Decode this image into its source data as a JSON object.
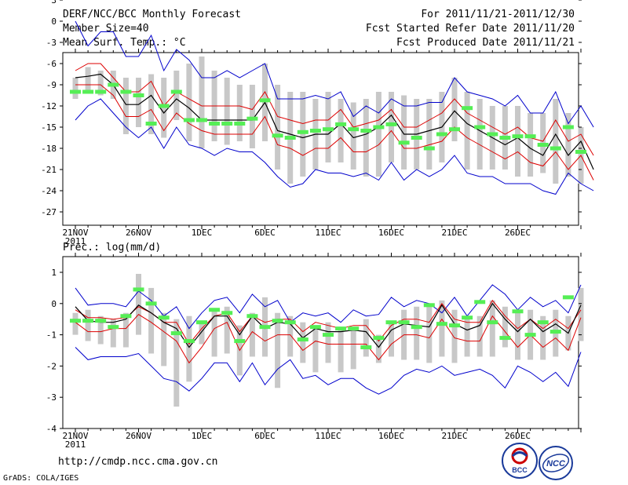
{
  "header": {
    "title": "DERF/NCC/BCC Monthly Forecast",
    "member_size": "Member Size=40",
    "variable": "Mean Surf. Temp.: °C",
    "period": "For 2011/11/21-2011/12/30",
    "started": "Fcst Started Refer Date 2011/11/20",
    "produced": "Fcst Produced Date 2011/11/21"
  },
  "footer": {
    "url": "http://cmdp.ncc.cma.gov.cn",
    "grads": "GrADS: COLA/IGES",
    "logo1": "BCC",
    "logo2": "NCC"
  },
  "colors": {
    "max_min": "#0000cc",
    "spread": "#dd0000",
    "mean": "#000000",
    "obs": "#55ee55",
    "box": "#c8c8c8"
  },
  "chart_data": [
    {
      "type": "line",
      "title": "Mean Surf. Temp.: °C",
      "ylabel": "°C",
      "ylim": [
        -28,
        4
      ],
      "yticks": [
        3,
        0,
        -3,
        -6,
        -9,
        -12,
        -15,
        -18,
        -21,
        -24,
        -27
      ],
      "xlabels": [
        {
          "day": 0,
          "label": "21NOV"
        },
        {
          "day": 5,
          "label": "26NOV"
        },
        {
          "day": 10,
          "label": "1DEC"
        },
        {
          "day": 15,
          "label": "6DEC"
        },
        {
          "day": 20,
          "label": "11DEC"
        },
        {
          "day": 25,
          "label": "16DEC"
        },
        {
          "day": 30,
          "label": "21DEC"
        },
        {
          "day": 35,
          "label": "26DEC"
        }
      ],
      "year_label": "2011",
      "series": [
        {
          "name": "max",
          "values": [
            0,
            -3.5,
            -1.5,
            -1.5,
            -5,
            -5,
            -2,
            -7,
            -4,
            -5.5,
            -8,
            -8,
            -7,
            -8,
            -7,
            -6,
            -11,
            -11,
            -11,
            -10.5,
            -11,
            -10,
            -13.5,
            -12,
            -13,
            -11,
            -12,
            -12,
            -11.5,
            -11.5,
            -8,
            -10,
            -10.5,
            -11,
            -12,
            -10.5,
            -13,
            -13,
            -10,
            -14.5,
            -12,
            -15
          ]
        },
        {
          "name": "upper",
          "values": [
            -7,
            -6,
            -6,
            -8,
            -10,
            -10,
            -8.5,
            -12,
            -10,
            -11,
            -12,
            -12,
            -12,
            -12,
            -12.5,
            -10,
            -13.5,
            -14,
            -14.5,
            -14,
            -14,
            -12.5,
            -15,
            -14.5,
            -14,
            -12.5,
            -15,
            -15,
            -14,
            -13,
            -11,
            -13,
            -14,
            -15,
            -16,
            -15,
            -16.5,
            -17,
            -14,
            -17,
            -16,
            -19
          ]
        },
        {
          "name": "mean",
          "values": [
            -8,
            -7.8,
            -7.5,
            -9,
            -11.8,
            -11.8,
            -10.5,
            -13,
            -11,
            -12.3,
            -14,
            -14,
            -14,
            -14,
            -14,
            -11.5,
            -15.5,
            -16,
            -16.5,
            -16,
            -16,
            -14.5,
            -16.5,
            -16,
            -15,
            -13.3,
            -16,
            -16,
            -15.5,
            -15,
            -12.7,
            -14.5,
            -15.5,
            -16.5,
            -17.5,
            -16.5,
            -18,
            -19,
            -16,
            -19,
            -17,
            -21
          ]
        },
        {
          "name": "lower",
          "values": [
            -9,
            -9,
            -9,
            -10.5,
            -13.5,
            -13.5,
            -12.5,
            -15.5,
            -13,
            -14.5,
            -15.5,
            -16,
            -16,
            -16,
            -16,
            -13.5,
            -17.5,
            -18,
            -19,
            -18,
            -18,
            -16.5,
            -18.5,
            -18.5,
            -17.5,
            -15.5,
            -18,
            -18,
            -17.5,
            -17,
            -15,
            -16.5,
            -17.5,
            -18.5,
            -19.5,
            -18.5,
            -20,
            -20.5,
            -18.5,
            -21,
            -19,
            -22.5
          ]
        },
        {
          "name": "min",
          "values": [
            -14,
            -12,
            -11,
            -13,
            -15,
            -16.5,
            -15,
            -18,
            -15,
            -17.5,
            -18,
            -19,
            -18,
            -18.5,
            -18.5,
            -20,
            -22,
            -23.5,
            -23,
            -21,
            -21.5,
            -21.5,
            -22,
            -21.5,
            -22.5,
            -20,
            -22.5,
            -21,
            -22,
            -21,
            -19,
            -21.5,
            -22,
            -22,
            -23,
            -23,
            -23,
            -24,
            -24.5,
            -21.5,
            -23,
            -24
          ]
        },
        {
          "name": "obs",
          "values": [
            -10,
            -10,
            -10,
            -9,
            -10,
            -10.5,
            -14.5,
            -12,
            -10,
            -14,
            -14,
            -14.5,
            -14.5,
            -14.5,
            -13.8,
            -11.2,
            -16.2,
            -16.5,
            -15.7,
            -15.5,
            -15.3,
            -14.6,
            -15.3,
            -15.5,
            -15,
            -14.6,
            -17.2,
            -16.5,
            -18,
            -16,
            -15.3,
            -12.3,
            -15,
            -16,
            -16.5,
            -16.3,
            -16.3,
            -17.5,
            -18,
            -15,
            -18.5
          ]
        }
      ],
      "box_ranges": [
        [
          -8,
          -11
        ],
        [
          -6.5,
          -10
        ],
        [
          -7,
          -10.5
        ],
        [
          -7,
          -11
        ],
        [
          -8,
          -16
        ],
        [
          -8,
          -15
        ],
        [
          -7.5,
          -16
        ],
        [
          -8,
          -16.5
        ],
        [
          -7,
          -14
        ],
        [
          -6,
          -17
        ],
        [
          -5,
          -18
        ],
        [
          -7,
          -17
        ],
        [
          -8,
          -17.5
        ],
        [
          -9,
          -17
        ],
        [
          -9,
          -18
        ],
        [
          -6,
          -17
        ],
        [
          -9,
          -21
        ],
        [
          -10,
          -23
        ],
        [
          -10,
          -22
        ],
        [
          -11,
          -21
        ],
        [
          -10,
          -20
        ],
        [
          -11,
          -20
        ],
        [
          -11.5,
          -21
        ],
        [
          -11,
          -22
        ],
        [
          -10,
          -22
        ],
        [
          -10,
          -20
        ],
        [
          -10.5,
          -21
        ],
        [
          -11,
          -21
        ],
        [
          -11,
          -21
        ],
        [
          -10,
          -20
        ],
        [
          -8,
          -17
        ],
        [
          -10,
          -21
        ],
        [
          -11,
          -21
        ],
        [
          -12,
          -21
        ],
        [
          -12,
          -21
        ],
        [
          -12,
          -22
        ],
        [
          -13,
          -22
        ],
        [
          -13,
          -21.5
        ],
        [
          -11,
          -23
        ],
        [
          -13,
          -22
        ],
        [
          -15,
          -23
        ]
      ]
    },
    {
      "type": "line",
      "title": "Prec.: log(mm/d)",
      "ylabel": "log(mm/d)",
      "ylim": [
        -4,
        1.5
      ],
      "yticks": [
        1,
        0,
        -1,
        -2,
        -3,
        -4
      ],
      "xlabels": [
        {
          "day": 0,
          "label": "21NOV"
        },
        {
          "day": 5,
          "label": "26NOV"
        },
        {
          "day": 10,
          "label": "1DEC"
        },
        {
          "day": 15,
          "label": "6DEC"
        },
        {
          "day": 20,
          "label": "11DEC"
        },
        {
          "day": 25,
          "label": "16DEC"
        },
        {
          "day": 30,
          "label": "21DEC"
        },
        {
          "day": 35,
          "label": "26DEC"
        }
      ],
      "year_label": "2011",
      "series": [
        {
          "name": "max",
          "values": [
            0.5,
            -0.05,
            0,
            0,
            -0.1,
            0.4,
            0.1,
            -0.4,
            -0.1,
            -0.8,
            -0.3,
            0.1,
            0.2,
            -0.3,
            0.3,
            -0.1,
            0.1,
            -0.6,
            -0.3,
            -0.4,
            -0.3,
            -0.6,
            -0.2,
            -0.4,
            -0.35,
            0.2,
            -0.1,
            0.1,
            0,
            -0.3,
            0.2,
            -0.4,
            0.1,
            0.6,
            0.3,
            -0.2,
            0.2,
            -0.1,
            0.1,
            -0.3,
            0.6
          ]
        },
        {
          "name": "upper",
          "values": [
            -0.2,
            -0.45,
            -0.45,
            -0.5,
            -0.45,
            -0.1,
            -0.3,
            -0.6,
            -0.6,
            -1.3,
            -0.8,
            -0.4,
            -0.3,
            -0.9,
            -0.4,
            -0.6,
            -0.5,
            -0.5,
            -0.9,
            -0.6,
            -0.7,
            -0.8,
            -0.7,
            -0.7,
            -1.2,
            -0.7,
            -0.5,
            -0.5,
            -0.6,
            0,
            -0.5,
            -0.6,
            -0.6,
            0.1,
            -0.4,
            -0.8,
            -0.5,
            -0.8,
            -0.5,
            -0.8,
            -0.2
          ]
        },
        {
          "name": "mean",
          "values": [
            -0.1,
            -0.55,
            -0.6,
            -0.6,
            -0.5,
            -0.05,
            -0.3,
            -0.6,
            -0.8,
            -1.4,
            -0.9,
            -0.4,
            -0.4,
            -1,
            -0.4,
            -0.8,
            -0.6,
            -0.65,
            -1.1,
            -0.8,
            -0.9,
            -0.9,
            -0.85,
            -0.9,
            -1.4,
            -0.85,
            -0.65,
            -0.7,
            -0.75,
            -0.05,
            -0.65,
            -0.85,
            -0.7,
            0,
            -0.5,
            -0.9,
            -0.5,
            -0.9,
            -0.65,
            -0.95,
            -0.05
          ]
        },
        {
          "name": "lower",
          "values": [
            -0.6,
            -0.9,
            -0.9,
            -0.8,
            -0.8,
            -0.35,
            -0.6,
            -0.9,
            -1.2,
            -1.9,
            -1.4,
            -0.8,
            -0.6,
            -1.5,
            -0.9,
            -1.2,
            -1,
            -1,
            -1.5,
            -1.2,
            -1.3,
            -1.3,
            -1.3,
            -1.3,
            -1.8,
            -1.3,
            -1,
            -1,
            -1.1,
            -0.5,
            -1.1,
            -1.2,
            -1.2,
            -0.4,
            -0.9,
            -1.4,
            -1,
            -1.4,
            -1.1,
            -1.5,
            -0.45
          ]
        },
        {
          "name": "min",
          "values": [
            -1.4,
            -1.8,
            -1.7,
            -1.7,
            -1.7,
            -1.6,
            -2,
            -2.4,
            -2.5,
            -2.8,
            -2.4,
            -1.9,
            -1.9,
            -2.5,
            -1.9,
            -2.6,
            -2.1,
            -1.8,
            -2.4,
            -2.3,
            -2.6,
            -2.4,
            -2.4,
            -2.7,
            -2.9,
            -2.7,
            -2.3,
            -2.1,
            -2.2,
            -2,
            -2.3,
            -2.2,
            -2.1,
            -2.3,
            -2.7,
            -2,
            -2.2,
            -2.5,
            -2.2,
            -2.65,
            -1.55
          ]
        },
        {
          "name": "obs",
          "values": [
            -0.55,
            -0.55,
            -0.55,
            -0.75,
            -0.4,
            0.45,
            0,
            -0.45,
            -0.95,
            -1.2,
            -0.6,
            -0.2,
            -0.3,
            -1.2,
            -0.4,
            -0.75,
            -0.55,
            -0.6,
            -1.15,
            -0.75,
            -1,
            -0.8,
            -0.8,
            -1.4,
            -1.1,
            -0.6,
            -0.6,
            -0.75,
            -0.05,
            -0.65,
            -0.7,
            -0.45,
            0.05,
            -0.6,
            -1.1,
            -0.25,
            -1,
            -0.6,
            -0.9,
            0.2
          ]
        }
      ],
      "box_ranges": [
        [
          -0.3,
          -1
        ],
        [
          -0.2,
          -1.2
        ],
        [
          -0.4,
          -1.3
        ],
        [
          -0.5,
          -1.4
        ],
        [
          -0.3,
          -1.4
        ],
        [
          0.95,
          -1
        ],
        [
          0.5,
          -1.6
        ],
        [
          -0.3,
          -2
        ],
        [
          -0.5,
          -3.3
        ],
        [
          -0.4,
          -2.5
        ],
        [
          -0.6,
          -1.3
        ],
        [
          -0.2,
          -1.7
        ],
        [
          -0.1,
          -1.6
        ],
        [
          -0.7,
          -2.3
        ],
        [
          -0.3,
          -1.7
        ],
        [
          0.2,
          -1.7
        ],
        [
          -0.3,
          -2.7
        ],
        [
          -0.4,
          -1.7
        ],
        [
          -0.6,
          -1.9
        ],
        [
          -0.7,
          -2.2
        ],
        [
          -0.6,
          -1.9
        ],
        [
          -0.8,
          -2.2
        ],
        [
          -0.8,
          -2.1
        ],
        [
          -0.5,
          -1.7
        ],
        [
          -1,
          -1.9
        ],
        [
          -0.6,
          -1.7
        ],
        [
          -0.2,
          -1.8
        ],
        [
          -0.1,
          -1.8
        ],
        [
          -0.1,
          -1.9
        ],
        [
          0.1,
          -1.7
        ],
        [
          -0.2,
          -1.9
        ],
        [
          -0.4,
          -1.7
        ],
        [
          -0.4,
          -1.7
        ],
        [
          0.1,
          -1.7
        ],
        [
          -0.1,
          -1.4
        ],
        [
          -0.3,
          -1.8
        ],
        [
          -0.2,
          -1.8
        ],
        [
          -0.4,
          -1.8
        ],
        [
          -0.2,
          -1.7
        ],
        [
          -0.4,
          -1.5
        ],
        [
          0.5,
          -1.2
        ]
      ]
    }
  ]
}
